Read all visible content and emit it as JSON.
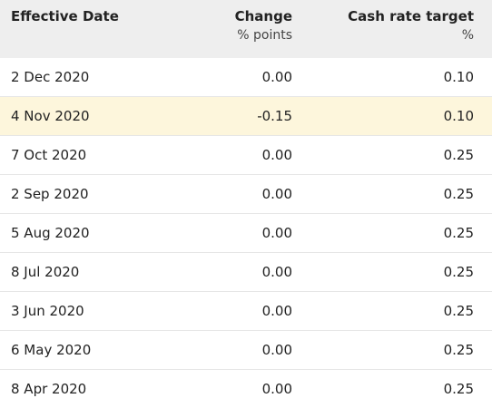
{
  "table": {
    "headers": {
      "date": {
        "label": "Effective Date",
        "sub": ""
      },
      "change": {
        "label": "Change",
        "sub": "% points"
      },
      "rate": {
        "label": "Cash rate target",
        "sub": "%"
      }
    },
    "rows": [
      {
        "date": "2 Dec 2020",
        "change": "0.00",
        "rate": "0.10",
        "highlighted": false
      },
      {
        "date": "4 Nov 2020",
        "change": "-0.15",
        "rate": "0.10",
        "highlighted": true
      },
      {
        "date": "7 Oct 2020",
        "change": "0.00",
        "rate": "0.25",
        "highlighted": false
      },
      {
        "date": "2 Sep 2020",
        "change": "0.00",
        "rate": "0.25",
        "highlighted": false
      },
      {
        "date": "5 Aug 2020",
        "change": "0.00",
        "rate": "0.25",
        "highlighted": false
      },
      {
        "date": "8 Jul 2020",
        "change": "0.00",
        "rate": "0.25",
        "highlighted": false
      },
      {
        "date": "3 Jun 2020",
        "change": "0.00",
        "rate": "0.25",
        "highlighted": false
      },
      {
        "date": "6 May 2020",
        "change": "0.00",
        "rate": "0.25",
        "highlighted": false
      },
      {
        "date": "8 Apr 2020",
        "change": "0.00",
        "rate": "0.25",
        "highlighted": false
      }
    ]
  },
  "colors": {
    "header_bg": "#eeeeee",
    "highlight_bg": "#fdf6dc",
    "row_border": "#e6e6e6"
  }
}
